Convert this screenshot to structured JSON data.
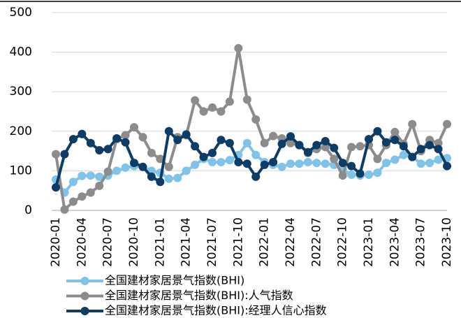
{
  "chart_data": {
    "type": "line",
    "categories": [
      "2020-01",
      null,
      null,
      "2020-04",
      null,
      null,
      "2020-07",
      null,
      null,
      "2020-10",
      null,
      null,
      "2021-01",
      null,
      null,
      "2021-04",
      null,
      null,
      "2021-07",
      null,
      null,
      "2021-10",
      null,
      null,
      "2022-01",
      null,
      null,
      "2022-04",
      null,
      null,
      "2022-07",
      null,
      null,
      "2022-10",
      null,
      null,
      "2023-01",
      null,
      null,
      "2023-04",
      null,
      null,
      "2023-07",
      null,
      null,
      "2023-10"
    ],
    "series": [
      {
        "name": "全国建材家居景气指数(BHI)",
        "color": "#7fc3ea",
        "values": [
          78,
          45,
          72,
          87,
          88,
          85,
          88,
          100,
          108,
          112,
          110,
          100,
          95,
          80,
          82,
          100,
          115,
          130,
          122,
          122,
          127,
          140,
          170,
          140,
          122,
          115,
          110,
          118,
          118,
          122,
          120,
          118,
          115,
          102,
          90,
          88,
          90,
          95,
          120,
          128,
          140,
          135,
          118,
          120,
          128,
          132
        ]
      },
      {
        "name": "全国建材家居景气指数(BHI):人气指数",
        "color": "#8c8c8c",
        "values": [
          142,
          2,
          22,
          35,
          45,
          62,
          98,
          180,
          190,
          210,
          185,
          145,
          130,
          110,
          185,
          190,
          278,
          250,
          260,
          250,
          275,
          410,
          280,
          230,
          170,
          188,
          182,
          170,
          165,
          145,
          155,
          160,
          130,
          88,
          160,
          162,
          165,
          130,
          165,
          198,
          168,
          218,
          150,
          178,
          170,
          218
        ]
      },
      {
        "name": "全国建材家居景气指数(BHI):经理人信心指数",
        "color": "#0d3d66",
        "values": [
          58,
          142,
          180,
          193,
          170,
          152,
          155,
          182,
          172,
          120,
          110,
          85,
          72,
          200,
          178,
          192,
          162,
          135,
          145,
          178,
          170,
          122,
          118,
          85,
          115,
          122,
          168,
          187,
          165,
          147,
          165,
          175,
          158,
          120,
          112,
          93,
          180,
          200,
          172,
          178,
          162,
          135,
          155,
          165,
          155,
          112
        ]
      }
    ],
    "ylim": [
      0,
      500
    ],
    "yticks": [
      0,
      100,
      200,
      300,
      400,
      500
    ],
    "grid": true,
    "legend": "bottom"
  }
}
